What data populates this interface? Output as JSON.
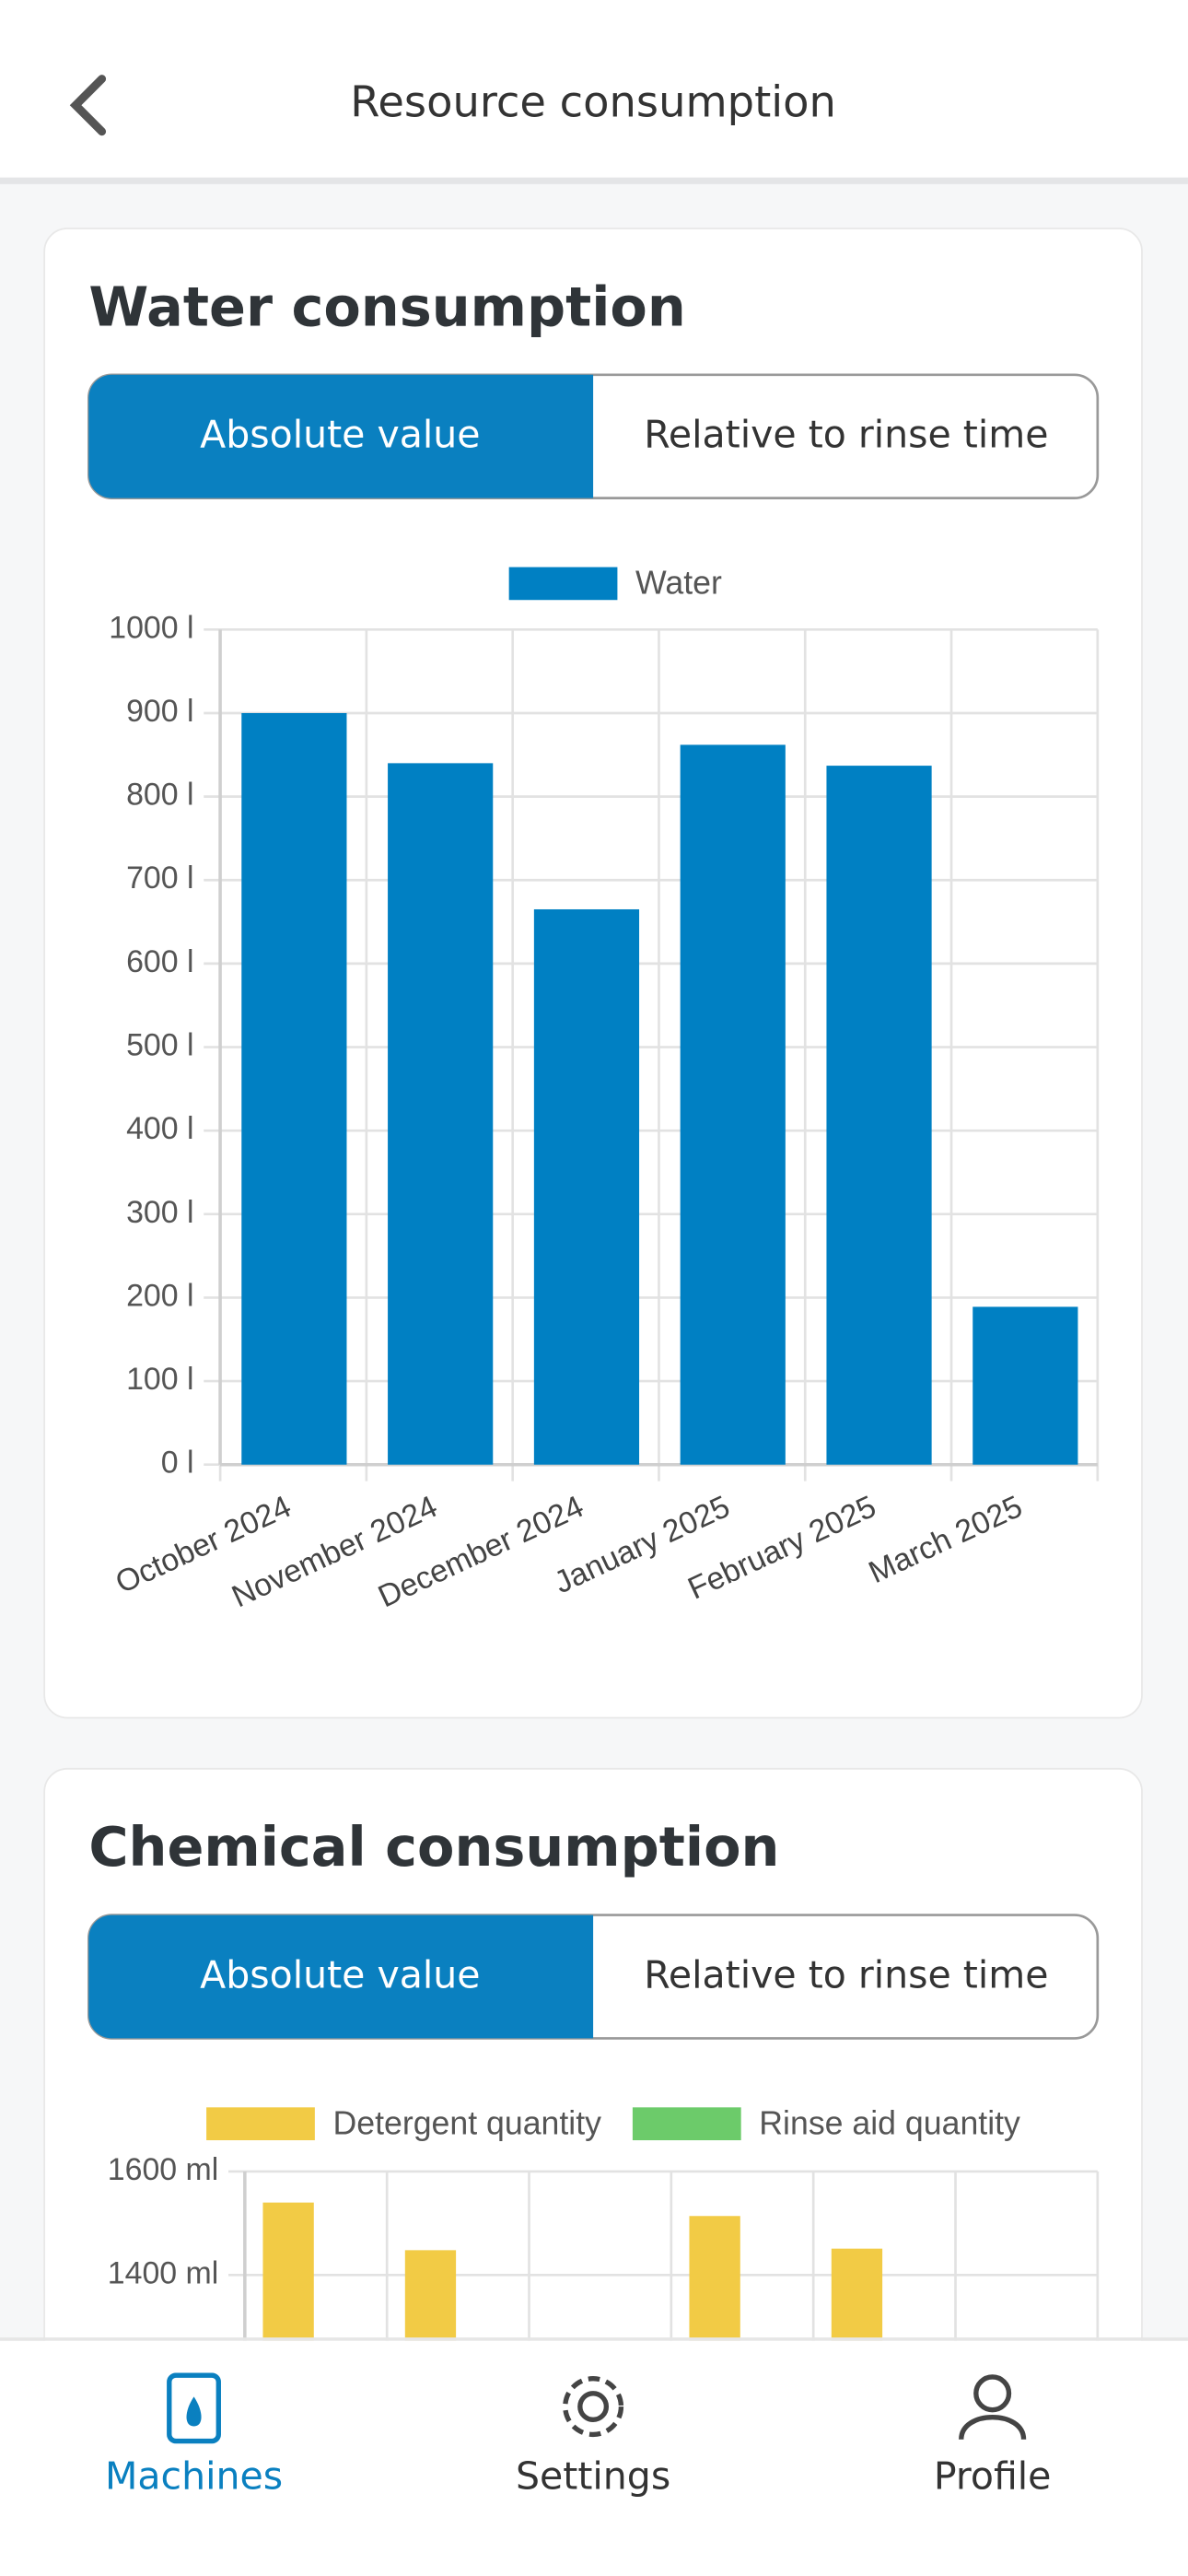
{
  "header": {
    "title": "Resource consumption"
  },
  "sections": [
    {
      "title": "Water consumption",
      "tabs": [
        "Absolute value",
        "Relative to rinse time"
      ],
      "chart_data": {
        "type": "bar",
        "categories": [
          "October 2024",
          "November 2024",
          "December 2024",
          "January 2025",
          "February 2025",
          "March 2025"
        ],
        "series": [
          {
            "name": "Water",
            "color": "#0080c3",
            "values": [
              900,
              840,
              665,
              862,
              837,
              189
            ]
          }
        ],
        "ylim": [
          0,
          1000
        ],
        "yticks": [
          {
            "value": 0,
            "label": "0 l"
          },
          {
            "value": 100,
            "label": "100 l"
          },
          {
            "value": 200,
            "label": "200 l"
          },
          {
            "value": 300,
            "label": "300 l"
          },
          {
            "value": 400,
            "label": "400 l"
          },
          {
            "value": 500,
            "label": "500 l"
          },
          {
            "value": 600,
            "label": "600 l"
          },
          {
            "value": 700,
            "label": "700 l"
          },
          {
            "value": 800,
            "label": "800 l"
          },
          {
            "value": 900,
            "label": "900 l"
          },
          {
            "value": 1000,
            "label": "1000 l"
          }
        ],
        "grid": true
      }
    },
    {
      "title": "Chemical consumption",
      "tabs": [
        "Absolute value",
        "Relative to rinse time"
      ],
      "chart_data": {
        "type": "bar",
        "series": [
          {
            "name": "Detergent quantity",
            "color": "#f2cb45",
            "values": [
              1540,
              1448,
              null,
              1514,
              1451,
              null
            ]
          },
          {
            "name": "Rinse aid quantity",
            "color": "#6ccb6a",
            "values": [
              null,
              null,
              null,
              null,
              null,
              null
            ]
          }
        ],
        "yticks": [
          {
            "value": 1400,
            "label": "1400 ml"
          },
          {
            "value": 1600,
            "label": "1600 ml"
          }
        ],
        "grid": true
      }
    }
  ],
  "nav": [
    "Machines",
    "Settings",
    "Profile"
  ]
}
